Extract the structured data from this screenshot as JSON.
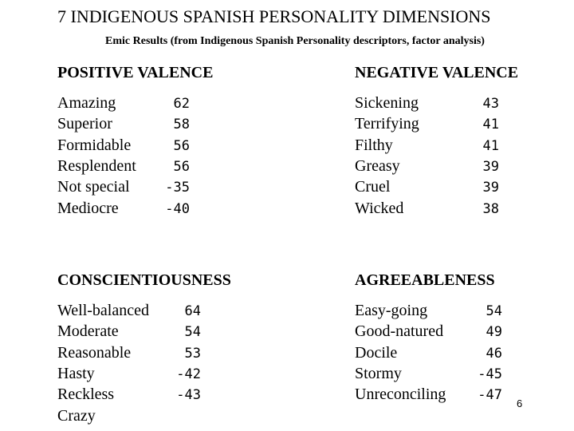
{
  "header": {
    "title": "7 INDIGENOUS SPANISH PERSONALITY DIMENSIONS",
    "subtitle": "Emic Results (from Indigenous Spanish Personality descriptors, factor analysis)"
  },
  "sections": [
    {
      "heading": "POSITIVE VALENCE",
      "items": [
        {
          "word": "Amazing",
          "loading": 62
        },
        {
          "word": "Superior",
          "loading": 58
        },
        {
          "word": "Formidable",
          "loading": 56
        },
        {
          "word": "Resplendent",
          "loading": 56
        },
        {
          "word": "Not special",
          "loading": -35
        },
        {
          "word": "Mediocre",
          "loading": -40
        }
      ]
    },
    {
      "heading": "NEGATIVE VALENCE",
      "items": [
        {
          "word": "Sickening",
          "loading": 43
        },
        {
          "word": "Terrifying",
          "loading": 41
        },
        {
          "word": "Filthy",
          "loading": 41
        },
        {
          "word": "Greasy",
          "loading": 39
        },
        {
          "word": "Cruel",
          "loading": 39
        },
        {
          "word": "Wicked",
          "loading": 38
        }
      ]
    },
    {
      "heading": "CONSCIENTIOUSNESS",
      "items": [
        {
          "word": "Well-balanced",
          "loading": 64
        },
        {
          "word": "Moderate",
          "loading": 54
        },
        {
          "word": "Reasonable",
          "loading": 53
        },
        {
          "word": "Hasty",
          "loading": -42
        },
        {
          "word": "Reckless",
          "loading": -43
        },
        {
          "word": "Crazy"
        }
      ]
    },
    {
      "heading": "AGREEABLENESS",
      "items": [
        {
          "word": "Easy-going",
          "loading": 54
        },
        {
          "word": "Good-natured",
          "loading": 49
        },
        {
          "word": "Docile",
          "loading": 46
        },
        {
          "word": "Stormy",
          "loading": -45
        },
        {
          "word": "Unreconciling",
          "loading": -47
        }
      ]
    }
  ],
  "page_number": "6"
}
